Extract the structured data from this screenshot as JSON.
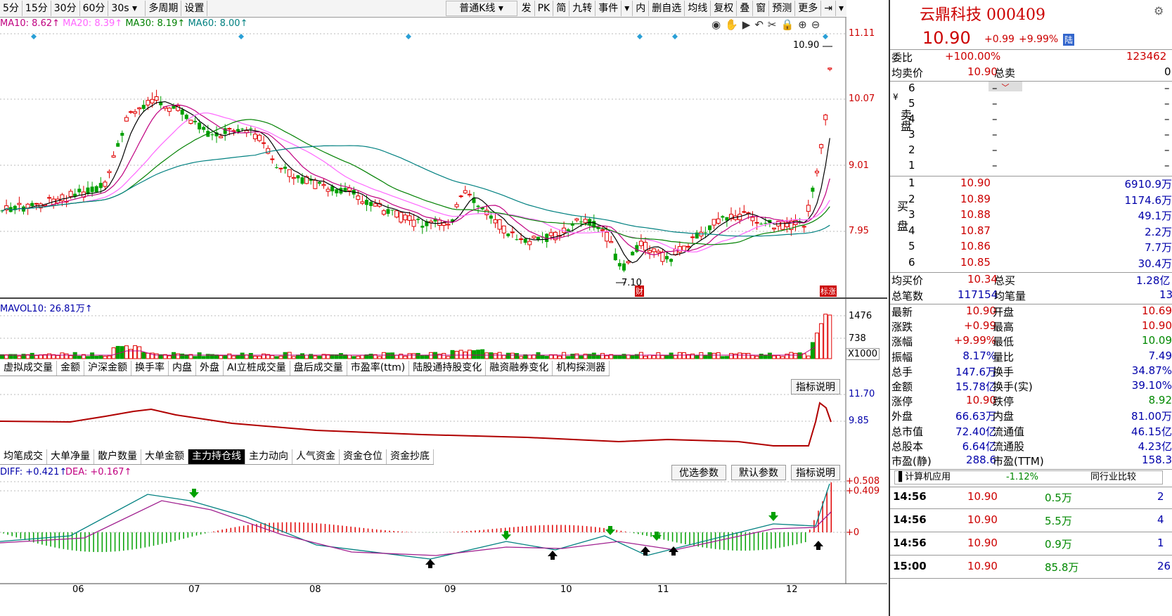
{
  "toolbar": {
    "periods": [
      "5分",
      "15分",
      "30分",
      "60分"
    ],
    "sec": "30s",
    "multi": "多周期",
    "settings": "设置",
    "kline_type": "普通K线",
    "right_buttons": [
      "发",
      "PK",
      "简",
      "九转",
      "事件",
      "内",
      "删自选",
      "均线",
      "复权",
      "叠",
      "窗",
      "预测",
      "更多"
    ]
  },
  "ma_legend": [
    {
      "text": "MA10: 8.62↑",
      "color": "#c00080"
    },
    {
      "text": "MA20: 8.39↑",
      "color": "#ff66ff"
    },
    {
      "text": "MA30: 8.19↑",
      "color": "#008000"
    },
    {
      "text": "MA60: 8.00↑",
      "color": "#008080"
    }
  ],
  "price_axis": [
    "11.11",
    "10.07",
    "9.01",
    "7.95"
  ],
  "price_annotations": {
    "high": "10.90",
    "low": "7.10",
    "tag_low": "财",
    "tag_end": "标涨"
  },
  "vol_legend": "MAVOL10: 26.81万↑",
  "vol_axis": [
    "1476",
    "738",
    "X1000"
  ],
  "tabs1": [
    "虚拟成交量",
    "金额",
    "沪深金额",
    "换手率",
    "内盘",
    "外盘",
    "AI立桩成交量",
    "盘后成交量",
    "市盈率(ttm)",
    "陆股通持股变化",
    "融资融券变化",
    "机构探测器"
  ],
  "ind1": {
    "help": "指标说明",
    "axis": [
      "11.70",
      "9.85"
    ]
  },
  "tabs2": [
    "均笔成交",
    "大单净量",
    "散户数量",
    "大单金额",
    "主力持仓线",
    "主力动向",
    "人气资金",
    "资金仓位",
    "资金抄底"
  ],
  "tabs2_active": 4,
  "macd": {
    "legend_diff": "DIFF: +0.421↑",
    "legend_dea": "DEA: +0.167↑",
    "btn1": "优选参数",
    "btn2": "默认参数",
    "help": "指标说明",
    "axis": [
      "+0.508",
      "+0.409",
      "+0"
    ]
  },
  "x_axis": [
    "06",
    "07",
    "08",
    "09",
    "10",
    "11",
    "12"
  ],
  "stock": {
    "name": "云鼎科技 000409",
    "price": "10.90",
    "change": "+0.99",
    "pct": "+9.99%",
    "badge": "陆",
    "weibi_label": "委比",
    "weibi": "+100.00%",
    "weicha": "123462",
    "jmj_label": "均卖价",
    "jmj": "10.90",
    "zm_label": "总卖",
    "zm": "0",
    "sell_label": "卖盘",
    "sell": [
      {
        "n": "6",
        "p": "–",
        "v": "–"
      },
      {
        "n": "5",
        "p": "–",
        "v": "–"
      },
      {
        "n": "4",
        "p": "–",
        "v": "–"
      },
      {
        "n": "3",
        "p": "–",
        "v": "–"
      },
      {
        "n": "2",
        "p": "–",
        "v": "–"
      },
      {
        "n": "1",
        "p": "–",
        "v": "–"
      }
    ],
    "buy_label": "买盘",
    "buy": [
      {
        "n": "1",
        "p": "10.90",
        "v": "6910.9万"
      },
      {
        "n": "2",
        "p": "10.89",
        "v": "1174.6万"
      },
      {
        "n": "3",
        "p": "10.88",
        "v": "49.1万"
      },
      {
        "n": "4",
        "p": "10.87",
        "v": "2.2万"
      },
      {
        "n": "5",
        "p": "10.86",
        "v": "7.7万"
      },
      {
        "n": "6",
        "p": "10.85",
        "v": "30.4万"
      }
    ],
    "jmaij_label": "均买价",
    "jmaij": "10.34",
    "zmai_label": "总买",
    "zmai": "1.28亿",
    "zbs_label": "总笔数",
    "zbs": "117154",
    "jbl_label": "均笔量",
    "jbl": "13",
    "stats": [
      [
        "最新",
        "10.90",
        "开盘",
        "10.69"
      ],
      [
        "涨跌",
        "+0.99",
        "最高",
        "10.90"
      ],
      [
        "涨幅",
        "+9.99%",
        "最低",
        "10.09"
      ],
      [
        "振幅",
        "8.17%",
        "量比",
        "7.49"
      ],
      [
        "总手",
        "147.6万",
        "换手",
        "34.87%"
      ],
      [
        "金额",
        "15.78亿",
        "换手(实)",
        "39.10%"
      ],
      [
        "涨停",
        "10.90",
        "跌停",
        "8.92"
      ],
      [
        "外盘",
        "66.63万",
        "内盘",
        "81.00万"
      ],
      [
        "总市值",
        "72.40亿",
        "流通值",
        "46.15亿"
      ],
      [
        "总股本",
        "6.64亿",
        "流通股",
        "4.23亿"
      ],
      [
        "市盈(静)",
        "288.6",
        "市盈(TTM)",
        "158.3"
      ]
    ],
    "industry": "计算机应用",
    "industry_pct": "-1.12%",
    "industry_cmp": "同行业比较",
    "ticks": [
      {
        "t": "14:56",
        "p": "10.90",
        "v": "0.5万",
        "n": "2"
      },
      {
        "t": "14:56",
        "p": "10.90",
        "v": "5.5万",
        "n": "4"
      },
      {
        "t": "14:56",
        "p": "10.90",
        "v": "0.9万",
        "n": "1"
      },
      {
        "t": "15:00",
        "p": "10.90",
        "v": "85.8万",
        "n": "26"
      }
    ]
  },
  "colors": {
    "up": "#e00000",
    "down": "#00a000",
    "bg": "#ffffff"
  }
}
